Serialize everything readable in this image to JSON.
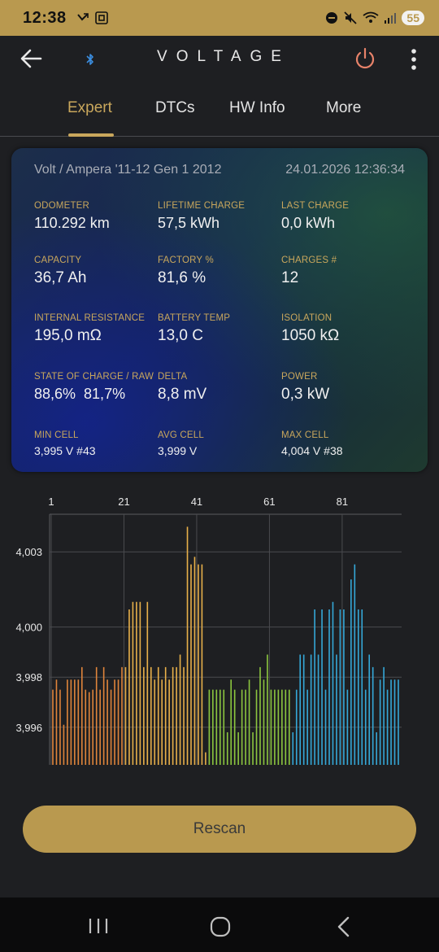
{
  "status_bar": {
    "time": "12:38",
    "battery": "55",
    "left_icons": [
      "missed-call-icon",
      "screenshot-icon"
    ],
    "right_icons": [
      "dnd-icon",
      "mute-icon",
      "wifi-icon",
      "signal-icon"
    ]
  },
  "app_bar": {
    "title": "VOLTAGE",
    "accent_color": "#c9a75c",
    "power_color": "#e8836a",
    "bluetooth_color": "#3b8ee0"
  },
  "tabs": [
    {
      "label": "Expert",
      "active": true
    },
    {
      "label": "DTCs",
      "active": false
    },
    {
      "label": "HW Info",
      "active": false
    },
    {
      "label": "More",
      "active": false
    }
  ],
  "card": {
    "model": "Volt / Ampera '11-12 Gen 1 2012",
    "timestamp": "24.01.2026 12:36:34",
    "metrics": [
      {
        "label": "ODOMETER",
        "value": "110.292 km"
      },
      {
        "label": "LIFETIME CHARGE",
        "value": "57,5 kWh"
      },
      {
        "label": "LAST CHARGE",
        "value": "0,0 kWh"
      },
      {
        "label": "CAPACITY",
        "value": "36,7 Ah"
      },
      {
        "label": "FACTORY %",
        "value": "81,6 %"
      },
      {
        "label": "CHARGES #",
        "value": "12"
      },
      {
        "label": "INTERNAL RESISTANCE",
        "value": "195,0 mΩ"
      },
      {
        "label": "BATTERY TEMP",
        "value": "13,0 C"
      },
      {
        "label": "ISOLATION",
        "value": "1050 kΩ"
      },
      {
        "label": "STATE OF CHARGE / RAW",
        "value": "88,6%  81,7%"
      },
      {
        "label": "DELTA",
        "value": "8,8 mV"
      },
      {
        "label": "POWER",
        "value": "0,3 kW"
      },
      {
        "label": "MIN CELL",
        "value": "3,995 V #43"
      },
      {
        "label": "AVG CELL",
        "value": "3,999 V"
      },
      {
        "label": "MAX CELL",
        "value": "4,004 V #38"
      }
    ]
  },
  "chart_data": {
    "type": "bar",
    "x_ticks": [
      "1",
      "21",
      "41",
      "61",
      "81"
    ],
    "y_ticks": [
      "4,003",
      "4,000",
      "3,998",
      "3,996"
    ],
    "ylim": [
      3.9945,
      4.0045
    ],
    "grid": true,
    "series_colors": [
      "#e0853b",
      "#e8b04a",
      "#8cc63f",
      "#35a8d8"
    ],
    "series_ranges": [
      [
        1,
        20
      ],
      [
        21,
        43
      ],
      [
        44,
        66
      ],
      [
        67,
        96
      ]
    ],
    "values": [
      3.9975,
      3.9979,
      3.9975,
      3.9961,
      3.9979,
      3.9979,
      3.9979,
      3.9979,
      3.9984,
      3.9975,
      3.9974,
      3.9975,
      3.9984,
      3.9975,
      3.9984,
      3.9979,
      3.9975,
      3.9979,
      3.9979,
      3.9984,
      3.9984,
      4.0007,
      4.001,
      4.001,
      4.001,
      3.9984,
      4.001,
      3.9984,
      3.9979,
      3.9984,
      3.9979,
      3.9984,
      3.9979,
      3.9984,
      3.9984,
      3.9989,
      3.9984,
      4.004,
      4.0025,
      4.0028,
      4.0025,
      4.0025,
      3.995,
      3.9975,
      3.9975,
      3.9975,
      3.9975,
      3.9975,
      3.9958,
      3.9979,
      3.9975,
      3.9958,
      3.9975,
      3.9975,
      3.9979,
      3.9958,
      3.9975,
      3.9984,
      3.9979,
      3.9989,
      3.9975,
      3.9975,
      3.9975,
      3.9975,
      3.9975,
      3.9975,
      3.9958,
      3.9975,
      3.9989,
      3.9989,
      3.9975,
      3.9989,
      4.0007,
      3.9989,
      4.0007,
      3.9975,
      4.0007,
      4.001,
      3.9989,
      4.0007,
      4.0007,
      3.9975,
      4.0019,
      4.0025,
      4.0007,
      4.0007,
      3.9975,
      3.9989,
      3.9984,
      3.9958,
      3.9979,
      3.9984,
      3.9975,
      3.9979,
      3.9979,
      3.9979
    ],
    "button": "Rescan"
  },
  "nav": [
    "recents-icon",
    "home-icon",
    "back-icon"
  ]
}
